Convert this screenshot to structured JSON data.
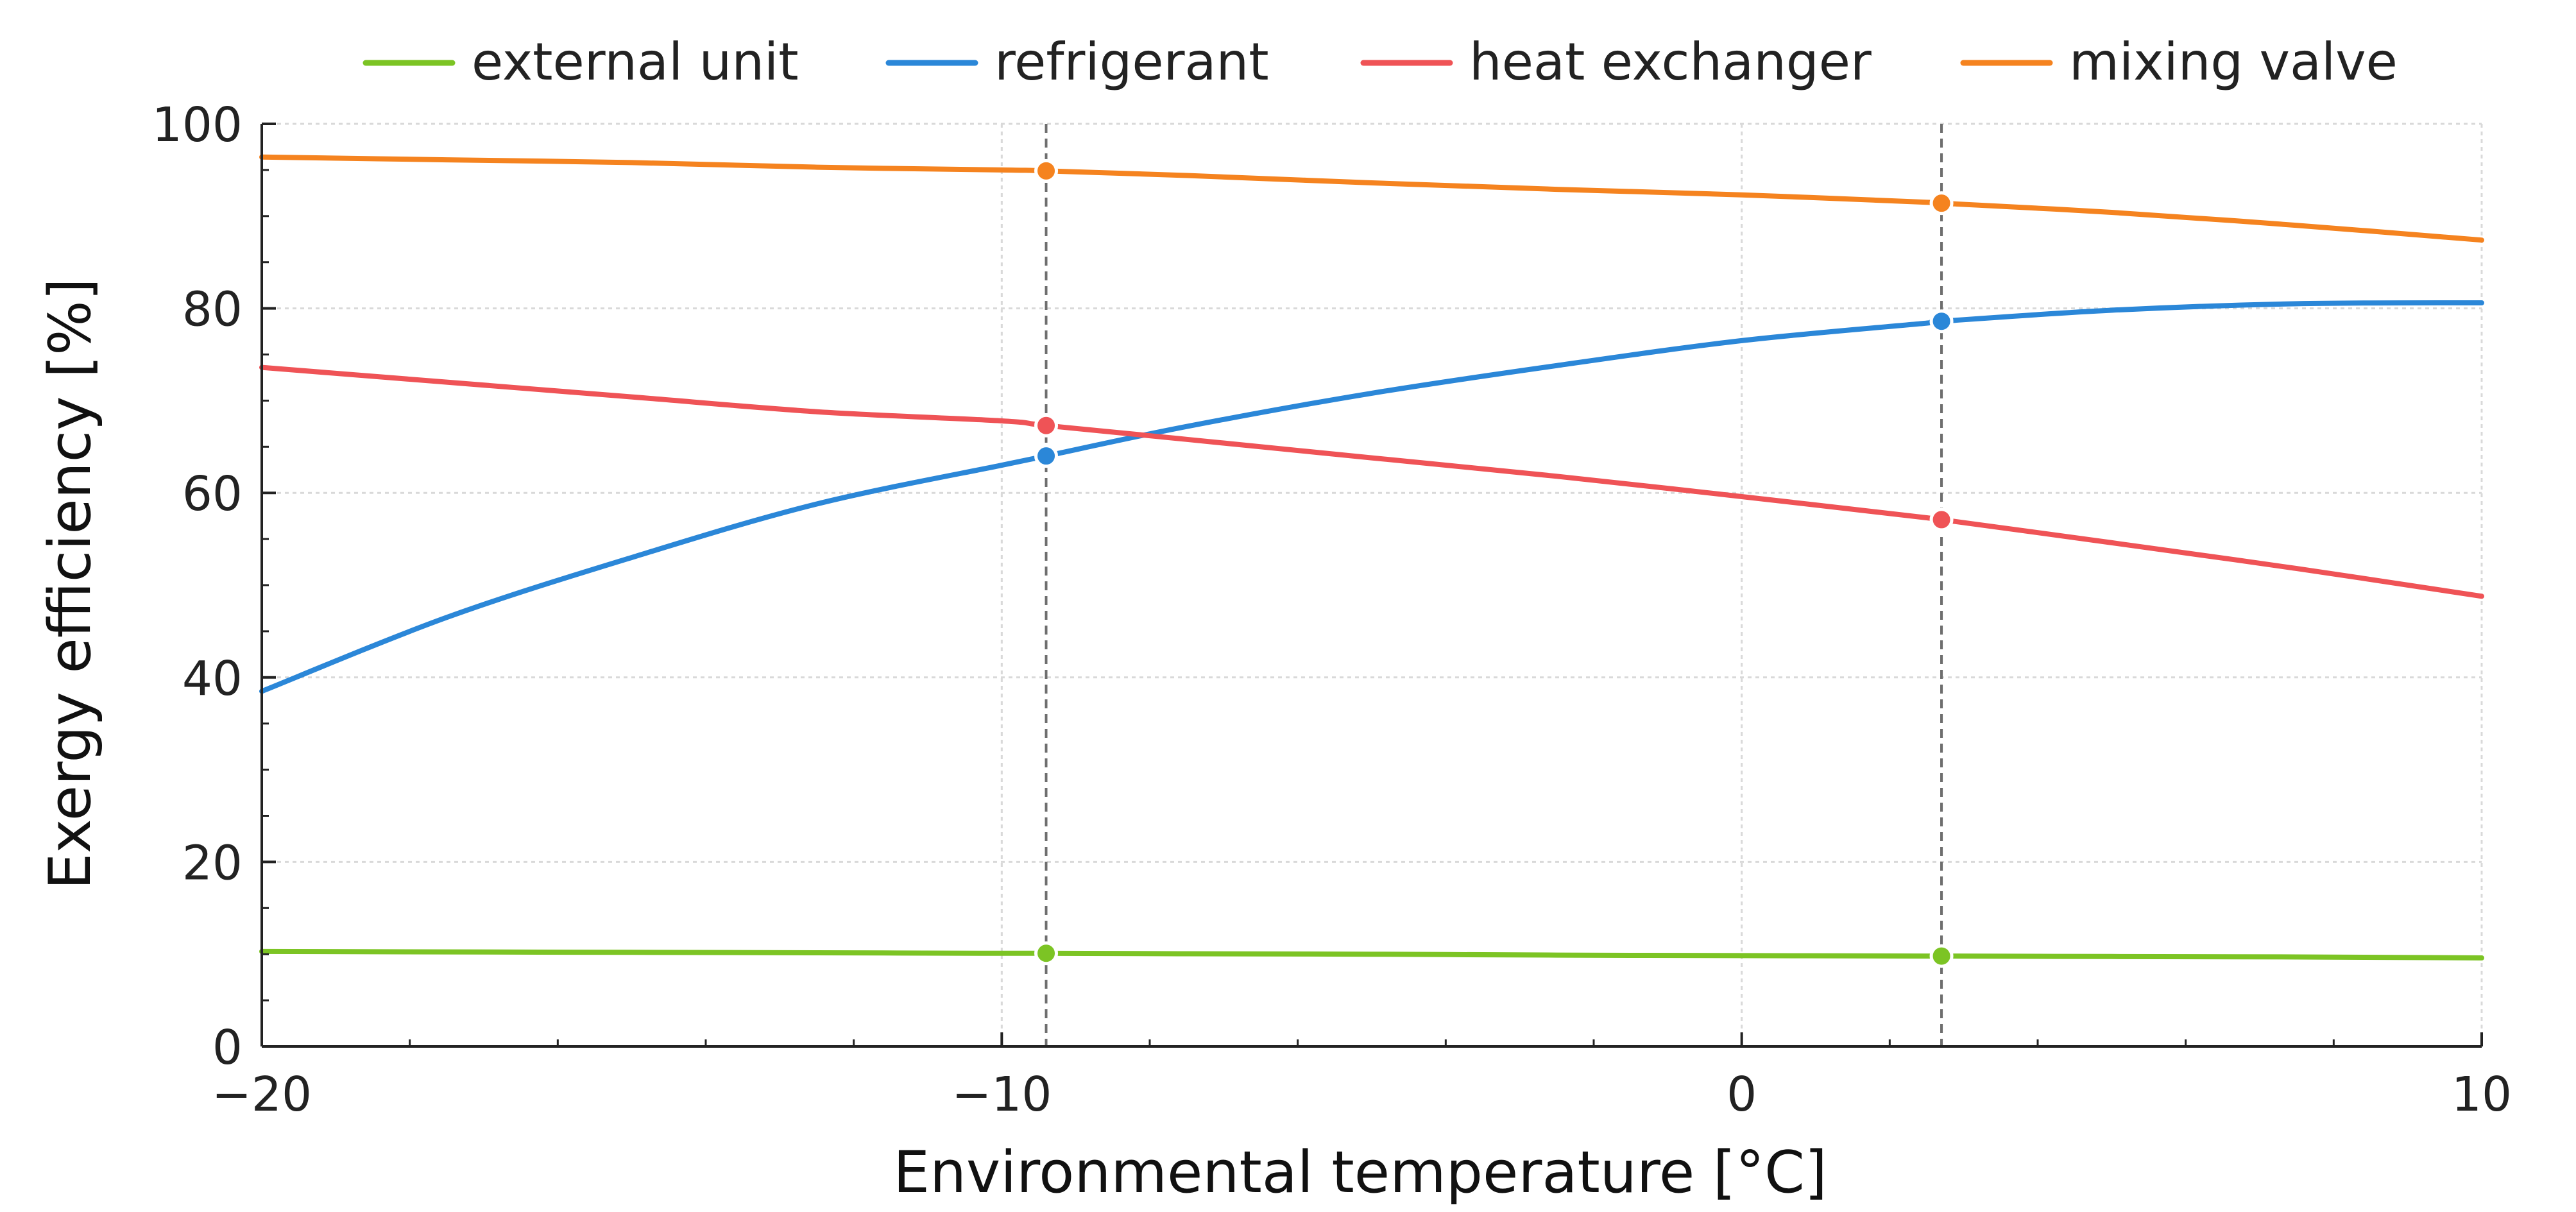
{
  "chart_data": {
    "type": "line",
    "xlabel": "Environmental temperature [°C]",
    "ylabel": "Exergy efficiency [%]",
    "xlim": [
      -20,
      10
    ],
    "ylim": [
      0,
      100
    ],
    "x_ticks": [
      -20,
      -10,
      0,
      10
    ],
    "x_tick_labels": [
      "−20",
      "−10",
      "0",
      "10"
    ],
    "y_ticks": [
      0,
      20,
      40,
      60,
      80,
      100
    ],
    "y_tick_labels": [
      "0",
      "20",
      "40",
      "60",
      "80",
      "100"
    ],
    "grid": true,
    "legend": "top",
    "reference_lines_x": [
      -9.4,
      2.7
    ],
    "x": [
      -20,
      -17.5,
      -15,
      -12.5,
      -10,
      -9.4,
      -7.5,
      -5,
      -2.5,
      0,
      2.5,
      2.7,
      5,
      7.5,
      10
    ],
    "series": [
      {
        "name": "external unit",
        "color": "#7cc424",
        "values": [
          10.3,
          10.25,
          10.2,
          10.15,
          10.1,
          10.1,
          10.05,
          10.0,
          9.9,
          9.85,
          9.8,
          9.8,
          9.75,
          9.7,
          9.6
        ],
        "markers": [
          [
            -9.4,
            10.1
          ],
          [
            2.7,
            9.8
          ]
        ]
      },
      {
        "name": "refrigerant",
        "color": "#2b87d8",
        "values": [
          38.5,
          46.5,
          53.0,
          58.8,
          63.0,
          64.0,
          67.2,
          70.8,
          73.8,
          76.5,
          78.4,
          78.6,
          79.8,
          80.5,
          80.6
        ],
        "markers": [
          [
            -9.4,
            64.0
          ],
          [
            2.7,
            78.6
          ]
        ]
      },
      {
        "name": "heat exchanger",
        "color": "#ef5356",
        "values": [
          73.6,
          72.0,
          70.4,
          68.8,
          67.8,
          67.3,
          65.8,
          63.8,
          61.8,
          59.6,
          57.3,
          57.1,
          54.6,
          51.8,
          48.8
        ],
        "markers": [
          [
            -9.4,
            67.3
          ],
          [
            2.7,
            57.1
          ]
        ]
      },
      {
        "name": "mixing valve",
        "color": "#f5831f",
        "values": [
          96.4,
          96.1,
          95.8,
          95.3,
          95.0,
          94.9,
          94.4,
          93.6,
          92.9,
          92.3,
          91.5,
          91.4,
          90.4,
          89.0,
          87.4
        ],
        "markers": [
          [
            -9.4,
            94.9
          ],
          [
            2.7,
            91.4
          ]
        ]
      }
    ]
  }
}
